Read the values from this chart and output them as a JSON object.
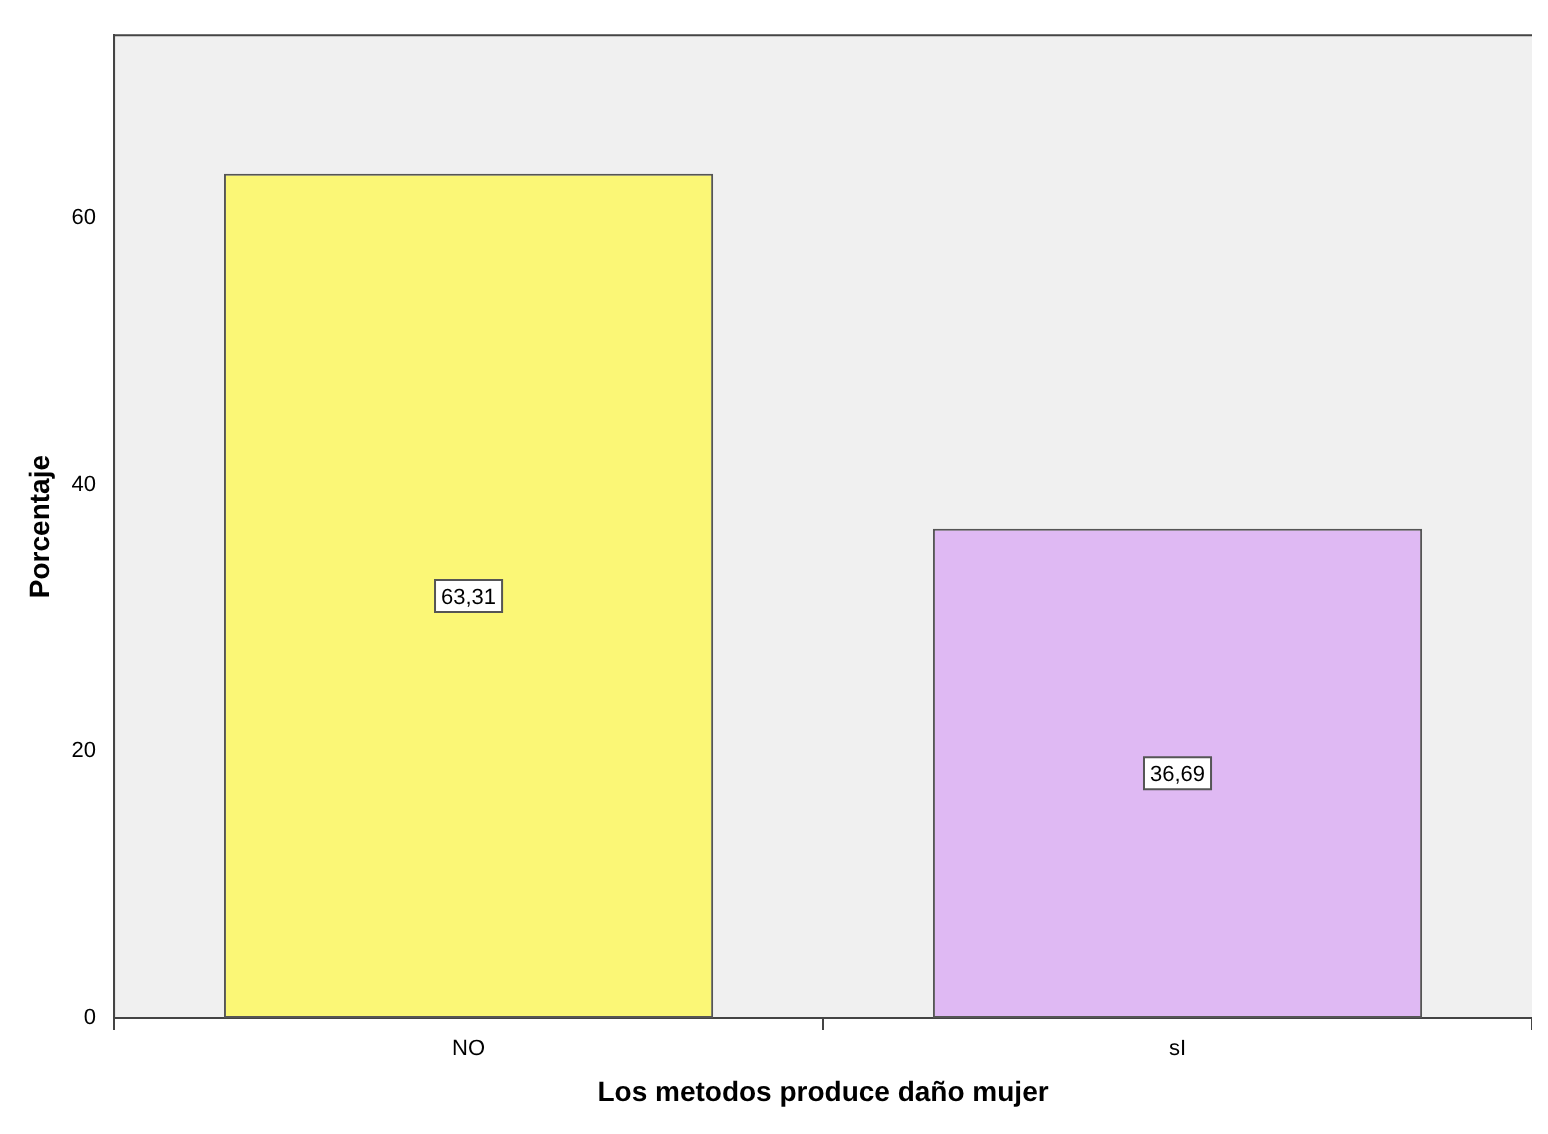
{
  "chart_data": {
    "type": "bar",
    "xlabel": "Los metodos produce daño mujer",
    "ylabel": "Porcentaje",
    "categories": [
      "NO",
      "sI"
    ],
    "values": [
      63.31,
      36.69
    ],
    "colors": [
      "#fbf776",
      "#dfb9f3"
    ],
    "value_labels": [
      "63,31",
      "36,69"
    ],
    "ylim": [
      0,
      73.7
    ],
    "yticks": [
      0,
      20,
      40,
      60
    ],
    "grid": false,
    "legend": false
  }
}
